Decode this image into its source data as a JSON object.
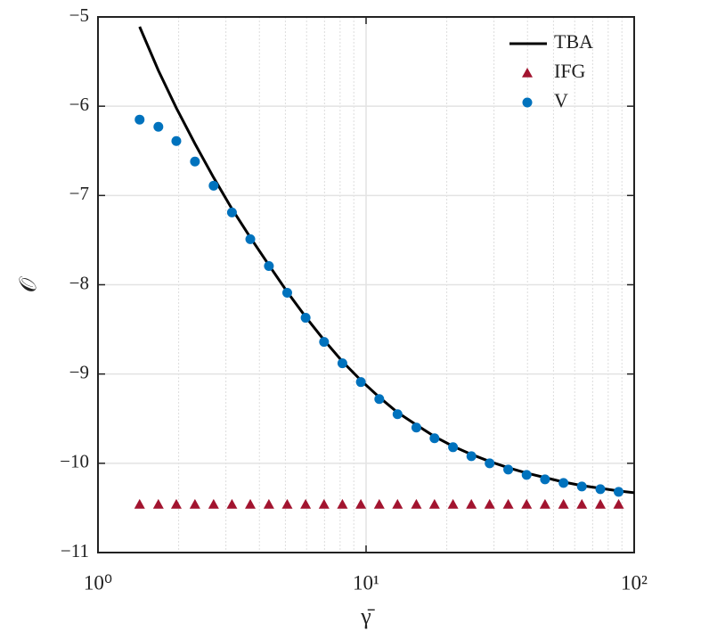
{
  "chart_data": {
    "type": "line",
    "xlabel": "γ̄",
    "ylabel": "𝒪",
    "xscale": "log",
    "xlim": [
      1,
      100
    ],
    "xticks": [
      {
        "value": 1,
        "label": "10⁰"
      },
      {
        "value": 10,
        "label": "10¹"
      },
      {
        "value": 100,
        "label": "10²"
      }
    ],
    "ylim": [
      -11,
      -5
    ],
    "yticks": [
      {
        "value": -11,
        "label": "−11"
      },
      {
        "value": -10,
        "label": "−10"
      },
      {
        "value": -9,
        "label": "−9"
      },
      {
        "value": -8,
        "label": "−8"
      },
      {
        "value": -7,
        "label": "−7"
      },
      {
        "value": -6,
        "label": "−6"
      },
      {
        "value": -5,
        "label": "−5"
      }
    ],
    "grid": true,
    "minor_grid": true,
    "legend": "northeast",
    "series": [
      {
        "name": "TBA",
        "color": "#000000",
        "marker": "line",
        "x": [
          1.43,
          1.68,
          1.96,
          2.3,
          2.7,
          3.16,
          3.7,
          4.34,
          5.08,
          5.95,
          6.97,
          8.16,
          9.56,
          11.2,
          13.1,
          15.4,
          18.0,
          21.1,
          24.7,
          28.9,
          33.9,
          39.7,
          46.5,
          54.5,
          63.8,
          74.8,
          87.5,
          100
        ],
        "values": [
          -5.11,
          -5.6,
          -6.02,
          -6.42,
          -6.8,
          -7.15,
          -7.47,
          -7.78,
          -8.08,
          -8.36,
          -8.62,
          -8.86,
          -9.07,
          -9.26,
          -9.43,
          -9.57,
          -9.7,
          -9.81,
          -9.9,
          -9.98,
          -10.05,
          -10.11,
          -10.16,
          -10.21,
          -10.25,
          -10.28,
          -10.31,
          -10.33
        ]
      },
      {
        "name": "IFG",
        "color": "#a2142f",
        "marker": "triangle",
        "x": [
          1.43,
          1.68,
          1.96,
          2.3,
          2.7,
          3.16,
          3.7,
          4.34,
          5.08,
          5.95,
          6.97,
          8.16,
          9.56,
          11.2,
          13.1,
          15.4,
          18.0,
          21.1,
          24.7,
          28.9,
          33.9,
          39.7,
          46.5,
          54.5,
          63.8,
          74.8,
          87.5
        ],
        "values": [
          -10.46,
          -10.46,
          -10.46,
          -10.46,
          -10.46,
          -10.46,
          -10.46,
          -10.46,
          -10.46,
          -10.46,
          -10.46,
          -10.46,
          -10.46,
          -10.46,
          -10.46,
          -10.46,
          -10.46,
          -10.46,
          -10.46,
          -10.46,
          -10.46,
          -10.46,
          -10.46,
          -10.46,
          -10.46,
          -10.46,
          -10.46
        ]
      },
      {
        "name": "V",
        "color": "#0072bd",
        "marker": "circle",
        "x": [
          1.43,
          1.68,
          1.96,
          2.3,
          2.7,
          3.16,
          3.7,
          4.34,
          5.08,
          5.95,
          6.97,
          8.16,
          9.56,
          11.2,
          13.1,
          15.4,
          18.0,
          21.1,
          24.7,
          28.9,
          33.9,
          39.7,
          46.5,
          54.5,
          63.8,
          74.8,
          87.5
        ],
        "values": [
          -6.15,
          -6.23,
          -6.39,
          -6.62,
          -6.89,
          -7.19,
          -7.49,
          -7.79,
          -8.09,
          -8.37,
          -8.64,
          -8.88,
          -9.09,
          -9.28,
          -9.45,
          -9.6,
          -9.72,
          -9.82,
          -9.92,
          -10.0,
          -10.07,
          -10.13,
          -10.18,
          -10.22,
          -10.26,
          -10.29,
          -10.32
        ]
      }
    ]
  }
}
